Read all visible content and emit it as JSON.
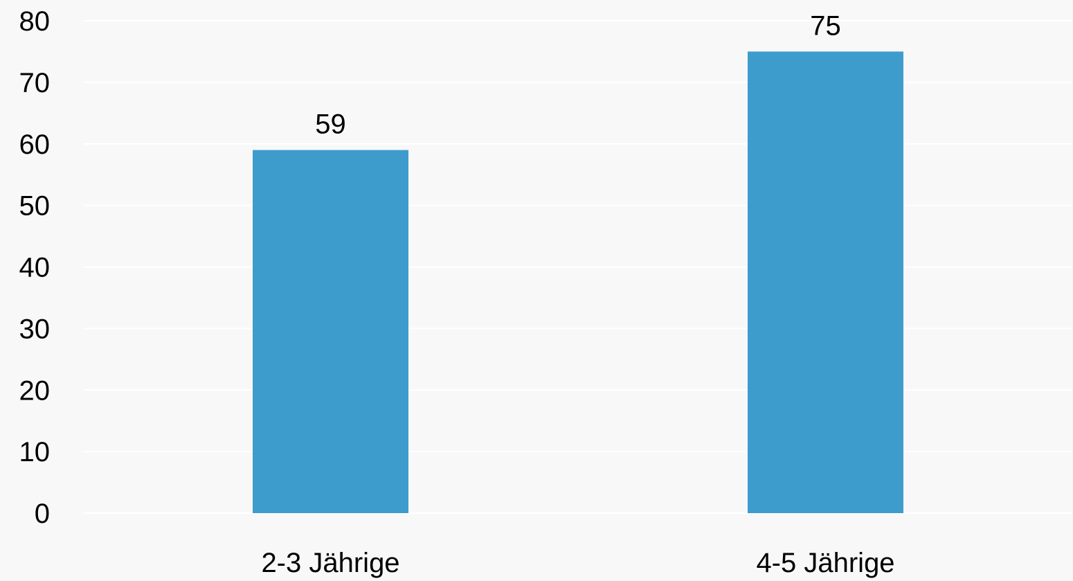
{
  "colors": {
    "background": "#f8f8f8",
    "bar": "#3e9ccd",
    "gridline": "#ffffff",
    "text": "#000000"
  },
  "chart_data": {
    "type": "bar",
    "categories": [
      "2-3 Jährige",
      "4-5 Jährige"
    ],
    "values": [
      59,
      75
    ],
    "data_labels": [
      "59",
      "75"
    ],
    "ylim": [
      0,
      80
    ],
    "yticks": [
      0,
      10,
      20,
      30,
      40,
      50,
      60,
      70,
      80
    ],
    "ytick_labels": [
      "0",
      "10",
      "20",
      "30",
      "40",
      "50",
      "60",
      "70",
      "80"
    ],
    "grid": true,
    "legend": "none"
  }
}
